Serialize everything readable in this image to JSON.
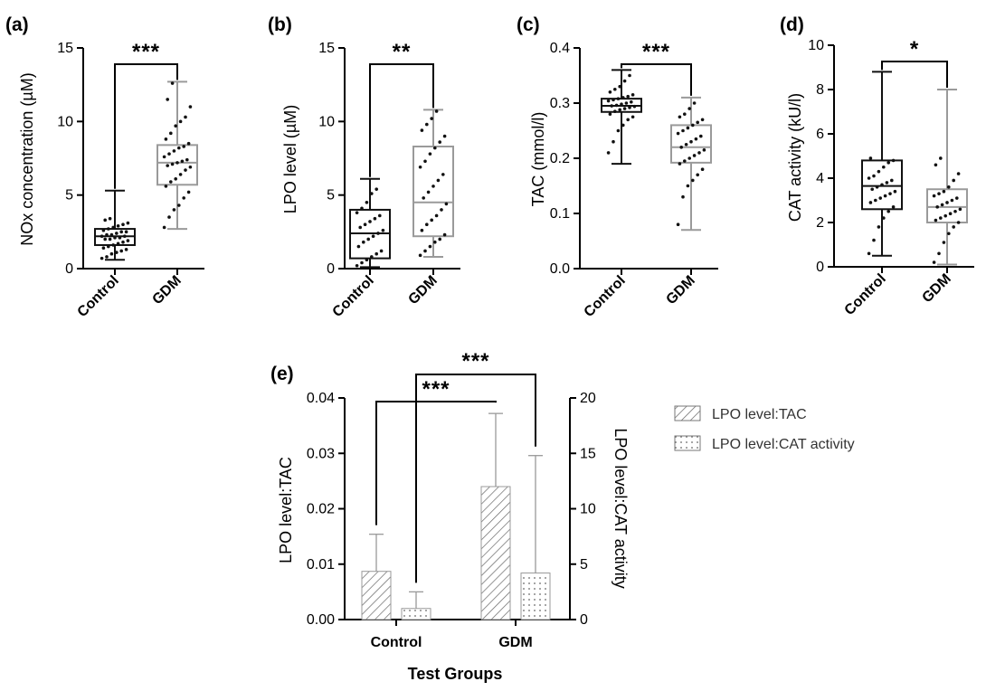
{
  "chart_data": [
    {
      "panel": "(a)",
      "type": "box",
      "ylabel": "NOx concentration (µM)",
      "ylim": [
        0,
        15
      ],
      "yticks": [
        "0",
        "5",
        "10",
        "15"
      ],
      "categories": [
        "Control",
        "GDM"
      ],
      "boxes": [
        {
          "name": "Control",
          "min": 0.6,
          "q1": 1.6,
          "median": 2.2,
          "q3": 2.7,
          "max": 5.3,
          "color": "#111111",
          "points": [
            0.7,
            0.8,
            1.0,
            1.1,
            1.2,
            1.3,
            1.4,
            1.5,
            1.6,
            1.7,
            1.8,
            1.9,
            2.0,
            2.0,
            2.1,
            2.1,
            2.2,
            2.2,
            2.3,
            2.3,
            2.4,
            2.5,
            2.5,
            2.6,
            2.7,
            2.8,
            2.9,
            3.0,
            3.1,
            3.3,
            3.4
          ]
        },
        {
          "name": "GDM",
          "min": 2.7,
          "q1": 5.7,
          "median": 7.2,
          "q3": 8.4,
          "max": 12.7,
          "color": "#9a9a9a",
          "points": [
            2.8,
            3.5,
            4.0,
            4.3,
            4.8,
            5.2,
            5.6,
            5.9,
            6.1,
            6.4,
            6.7,
            6.9,
            7.0,
            7.1,
            7.2,
            7.3,
            7.4,
            7.6,
            7.8,
            8.0,
            8.2,
            8.3,
            8.5,
            8.8,
            9.2,
            9.7,
            10.0,
            10.3,
            11.0,
            11.5,
            12.6
          ]
        }
      ],
      "significance": "***"
    },
    {
      "panel": "(b)",
      "type": "box",
      "ylabel": "LPO level (µM)",
      "ylim": [
        0,
        15
      ],
      "yticks": [
        "0",
        "5",
        "10",
        "15"
      ],
      "categories": [
        "Control",
        "GDM"
      ],
      "boxes": [
        {
          "name": "Control",
          "min": 0.1,
          "q1": 0.7,
          "median": 2.4,
          "q3": 4.0,
          "max": 6.1,
          "color": "#111111",
          "points": [
            0.2,
            0.4,
            0.6,
            0.8,
            1.0,
            1.2,
            1.5,
            1.8,
            2.0,
            2.2,
            2.4,
            2.6,
            2.8,
            3.0,
            3.2,
            3.4,
            3.6,
            3.8,
            4.1,
            4.5,
            5.1,
            5.4
          ]
        },
        {
          "name": "GDM",
          "min": 0.8,
          "q1": 2.2,
          "median": 4.5,
          "q3": 8.3,
          "max": 10.8,
          "color": "#9a9a9a",
          "points": [
            0.9,
            1.2,
            1.5,
            1.8,
            2.0,
            2.3,
            2.6,
            3.0,
            3.3,
            3.6,
            4.0,
            4.4,
            4.8,
            5.2,
            5.6,
            6.0,
            6.4,
            6.9,
            7.3,
            7.8,
            8.2,
            8.6,
            9.0,
            9.4,
            9.8,
            10.2,
            10.7
          ]
        }
      ],
      "significance": "**"
    },
    {
      "panel": "(c)",
      "type": "box",
      "ylabel": "TAC (mmol/l)",
      "ylim": [
        0,
        0.4
      ],
      "yticks": [
        "0.0",
        "0.1",
        "0.2",
        "0.3",
        "0.4"
      ],
      "categories": [
        "Control",
        "GDM"
      ],
      "boxes": [
        {
          "name": "Control",
          "min": 0.19,
          "q1": 0.284,
          "median": 0.295,
          "q3": 0.308,
          "max": 0.36,
          "color": "#111111",
          "points": [
            0.21,
            0.23,
            0.25,
            0.26,
            0.27,
            0.275,
            0.28,
            0.285,
            0.288,
            0.29,
            0.292,
            0.294,
            0.295,
            0.296,
            0.298,
            0.3,
            0.302,
            0.304,
            0.306,
            0.308,
            0.31,
            0.312,
            0.315,
            0.32,
            0.325,
            0.33,
            0.34,
            0.35
          ]
        },
        {
          "name": "GDM",
          "min": 0.07,
          "q1": 0.192,
          "median": 0.22,
          "q3": 0.26,
          "max": 0.31,
          "color": "#9a9a9a",
          "points": [
            0.08,
            0.13,
            0.15,
            0.16,
            0.17,
            0.18,
            0.19,
            0.195,
            0.2,
            0.205,
            0.21,
            0.215,
            0.22,
            0.225,
            0.23,
            0.235,
            0.24,
            0.245,
            0.25,
            0.255,
            0.26,
            0.265,
            0.27,
            0.275,
            0.28,
            0.29,
            0.3
          ]
        }
      ],
      "significance": "***"
    },
    {
      "panel": "(d)",
      "type": "box",
      "ylabel": "CAT activity (kU/l)",
      "ylim": [
        0,
        10
      ],
      "yticks": [
        "0",
        "2",
        "4",
        "6",
        "8",
        "10"
      ],
      "categories": [
        "Control",
        "GDM"
      ],
      "boxes": [
        {
          "name": "Control",
          "min": 0.5,
          "q1": 2.6,
          "median": 3.65,
          "q3": 4.8,
          "max": 8.8,
          "color": "#111111",
          "points": [
            0.6,
            1.2,
            1.8,
            2.2,
            2.5,
            2.7,
            2.9,
            3.0,
            3.1,
            3.2,
            3.3,
            3.4,
            3.5,
            3.6,
            3.7,
            3.8,
            3.9,
            4.0,
            4.1,
            4.3,
            4.5,
            4.7,
            4.8,
            4.9
          ]
        },
        {
          "name": "GDM",
          "min": 0.1,
          "q1": 2.0,
          "median": 2.7,
          "q3": 3.5,
          "max": 8.0,
          "color": "#9a9a9a",
          "points": [
            0.2,
            0.6,
            1.1,
            1.5,
            1.8,
            2.0,
            2.1,
            2.2,
            2.3,
            2.4,
            2.5,
            2.6,
            2.7,
            2.8,
            2.9,
            3.0,
            3.1,
            3.2,
            3.3,
            3.4,
            3.6,
            3.9,
            4.2,
            4.6,
            4.9
          ]
        }
      ],
      "significance": "*"
    },
    {
      "panel": "(e)",
      "type": "bar",
      "xlabel": "Test Groups",
      "ylabel": "LPO level:TAC",
      "ylabel_right": "LPO level:CAT activity",
      "ylim": [
        0,
        0.04
      ],
      "ylim_right": [
        0,
        20
      ],
      "yticks": [
        "0.00",
        "0.01",
        "0.02",
        "0.03",
        "0.04"
      ],
      "yticks_right": [
        "0",
        "5",
        "10",
        "15",
        "20"
      ],
      "categories": [
        "Control",
        "GDM"
      ],
      "series": [
        {
          "name": "LPO level:TAC",
          "axis": "left",
          "pattern": "hatch",
          "values": [
            0.0087,
            0.024
          ],
          "errors": [
            0.0067,
            0.0132
          ]
        },
        {
          "name": "LPO level:CAT activity",
          "axis": "right",
          "pattern": "dots",
          "values": [
            1.0,
            4.2
          ],
          "errors": [
            1.5,
            10.6
          ]
        }
      ],
      "significance": [
        "***",
        "***"
      ]
    }
  ]
}
